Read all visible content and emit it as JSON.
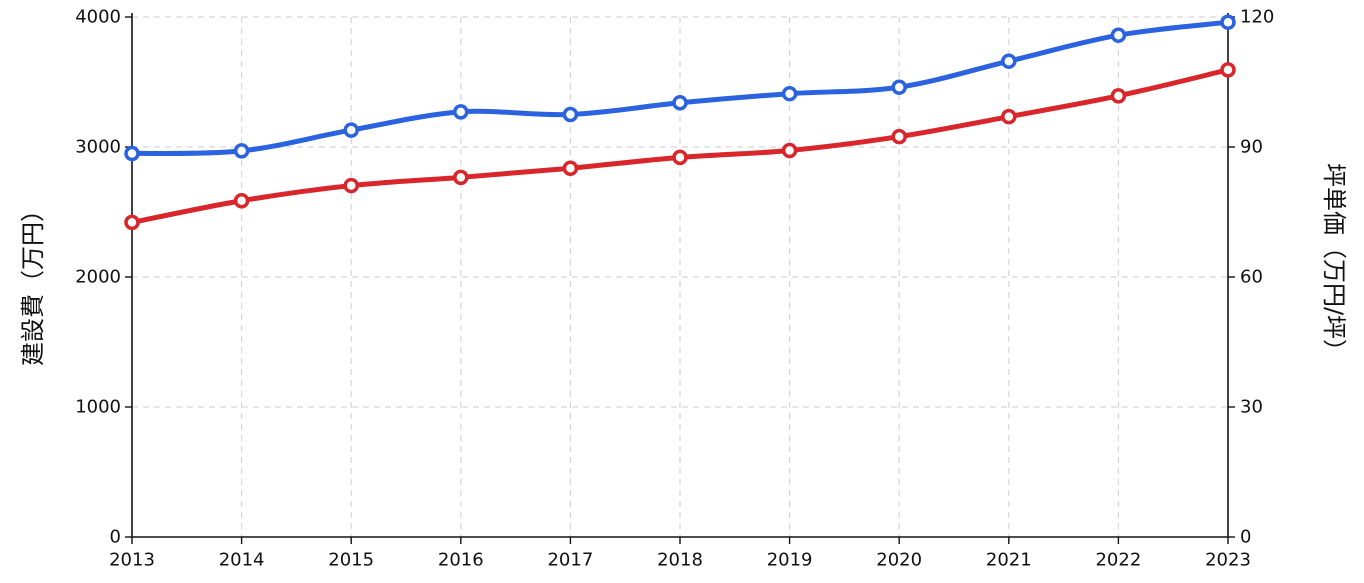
{
  "chart_data": {
    "type": "line",
    "x": [
      2013,
      2014,
      2015,
      2016,
      2017,
      2018,
      2019,
      2020,
      2021,
      2022,
      2023
    ],
    "xlim": [
      2013,
      2023
    ],
    "ylabel_left": "建設費（万円）",
    "ylabel_right": "坪単価（万円/坪）",
    "ylim_left": [
      0,
      4000
    ],
    "ylim_right": [
      0,
      120
    ],
    "left_ticks": [
      0,
      1000,
      2000,
      3000,
      4000
    ],
    "right_ticks": [
      0,
      30,
      60,
      90,
      120
    ],
    "x_ticks": [
      2013,
      2014,
      2015,
      2016,
      2017,
      2018,
      2019,
      2020,
      2021,
      2022,
      2023
    ],
    "grid": true,
    "legend": "none",
    "series": [
      {
        "axis": "left",
        "color": "#2a62e0",
        "values": [
          2950,
          2970,
          3130,
          3270,
          3250,
          3340,
          3410,
          3460,
          3660,
          3860,
          3960
        ]
      },
      {
        "axis": "right",
        "color": "#d9262b",
        "values": [
          72.6,
          77.6,
          81.1,
          83.0,
          85.1,
          87.6,
          89.2,
          92.4,
          97.0,
          101.8,
          107.8
        ]
      }
    ]
  }
}
